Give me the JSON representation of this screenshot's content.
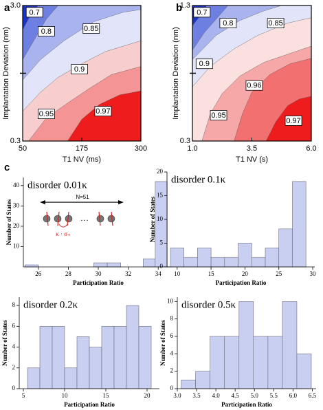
{
  "panel_labels": [
    "a",
    "b",
    "c"
  ],
  "chart_data": [
    {
      "type": "contour",
      "xlabel": "T1 NV (ms)",
      "ylabel": "Implantation Deviation (nm)",
      "xlim": [
        50,
        300
      ],
      "xticks": [
        50,
        175,
        300
      ],
      "ylim": [
        0.3,
        3.0
      ],
      "yticks": [
        0.3,
        {
          "value": 3,
          "label": "3.0"
        }
      ],
      "levels": [
        0.7,
        0.8,
        0.85,
        0.9,
        0.95,
        0.97
      ],
      "colors": [
        "#1a34c4",
        "#6d7fe0",
        "#a9b4ee",
        "#e2e5f9",
        "#f8cdcd",
        "#f49494",
        "#ee1c1c"
      ]
    },
    {
      "type": "contour",
      "xlabel": "T1 NV (s)",
      "ylabel": "Implantation Deviation (nm)",
      "xlim": [
        1,
        6
      ],
      "xticks": [
        {
          "value": 1,
          "label": "1.0"
        },
        3.5,
        {
          "value": 6,
          "label": "6.0"
        }
      ],
      "ylim": [
        0.3,
        1.3
      ],
      "yticks": [
        0.3,
        1.3
      ],
      "levels": [
        0.7,
        0.8,
        0.85,
        0.9,
        0.95,
        0.96,
        0.97
      ],
      "colors": [
        "#1a34c4",
        "#6d7fe0",
        "#a9b4ee",
        "#e2e5f9",
        "#fbe0e0",
        "#f6a8a8",
        "#f27070",
        "#ee1c1c"
      ]
    },
    {
      "type": "histogram",
      "title": "disorder 0.01κ",
      "xlabel": "Participation Ratio",
      "ylabel": "Number of States",
      "bins": [
        25.1,
        26.0,
        29.7,
        30.6,
        31.5,
        33.0,
        33.8,
        34.6
      ],
      "counts": [
        1,
        0,
        2,
        2,
        0,
        4,
        42
      ],
      "xlim": [
        25,
        35
      ],
      "xticks": [
        26,
        28,
        30,
        32,
        34
      ],
      "ylim": [
        0,
        44
      ],
      "yticks": [
        10,
        20,
        30,
        40
      ],
      "color": "#c9cff1",
      "inset": {
        "length_label": "N=51",
        "coupling_label": "κ · σ₊"
      }
    },
    {
      "type": "histogram",
      "title": "disorder 0.1κ",
      "xlabel": "Participation Ratio",
      "ylabel": "Number of States",
      "bins": [
        9,
        11,
        13,
        15,
        17,
        19,
        21,
        23,
        25,
        27,
        29
      ],
      "counts": [
        4,
        2,
        4,
        2,
        2,
        5,
        2,
        4,
        8,
        18
      ],
      "xlim": [
        8.5,
        30.3
      ],
      "xticks": [
        10,
        15,
        20,
        25,
        30
      ],
      "ylim": [
        0,
        20
      ],
      "yticks": [
        0,
        5,
        10,
        15,
        20
      ],
      "color": "#c9cff1"
    },
    {
      "type": "histogram",
      "title": "disorder 0.2κ",
      "xlabel": "Participation Ratio",
      "ylabel": "Number of States",
      "bins": [
        5.5,
        7,
        8.5,
        10,
        11.5,
        13,
        14.5,
        16,
        17.5,
        19,
        20.5
      ],
      "counts": [
        2,
        6,
        6,
        2,
        5,
        4,
        6,
        6,
        8,
        6
      ],
      "xlim": [
        4.5,
        21.5
      ],
      "xticks": [
        5,
        10,
        15,
        20
      ],
      "ylim": [
        0,
        8.8
      ],
      "yticks": [
        0,
        2,
        4,
        6,
        8
      ],
      "color": "#c9cff1"
    },
    {
      "type": "histogram",
      "title": "disorder 0.5κ",
      "xlabel": "Participation Ratio",
      "ylabel": "Number of States",
      "bins": [
        3.1,
        3.475,
        3.85,
        4.225,
        4.6,
        4.975,
        5.35,
        5.725,
        6.1,
        6.475
      ],
      "counts": [
        1,
        2,
        6,
        6,
        10,
        6,
        6,
        10,
        4
      ],
      "xlim": [
        3,
        6.6
      ],
      "xticks": [
        {
          "value": 3,
          "label": "3.0"
        },
        3.5,
        {
          "value": 4,
          "label": "4.0"
        },
        4.5,
        {
          "value": 5,
          "label": "5.0"
        },
        5.5,
        {
          "value": 6,
          "label": "6.0"
        },
        6.5
      ],
      "ylim": [
        0,
        10.5
      ],
      "yticks": [
        0,
        2,
        4,
        6,
        8,
        10
      ],
      "color": "#c9cff1"
    }
  ]
}
